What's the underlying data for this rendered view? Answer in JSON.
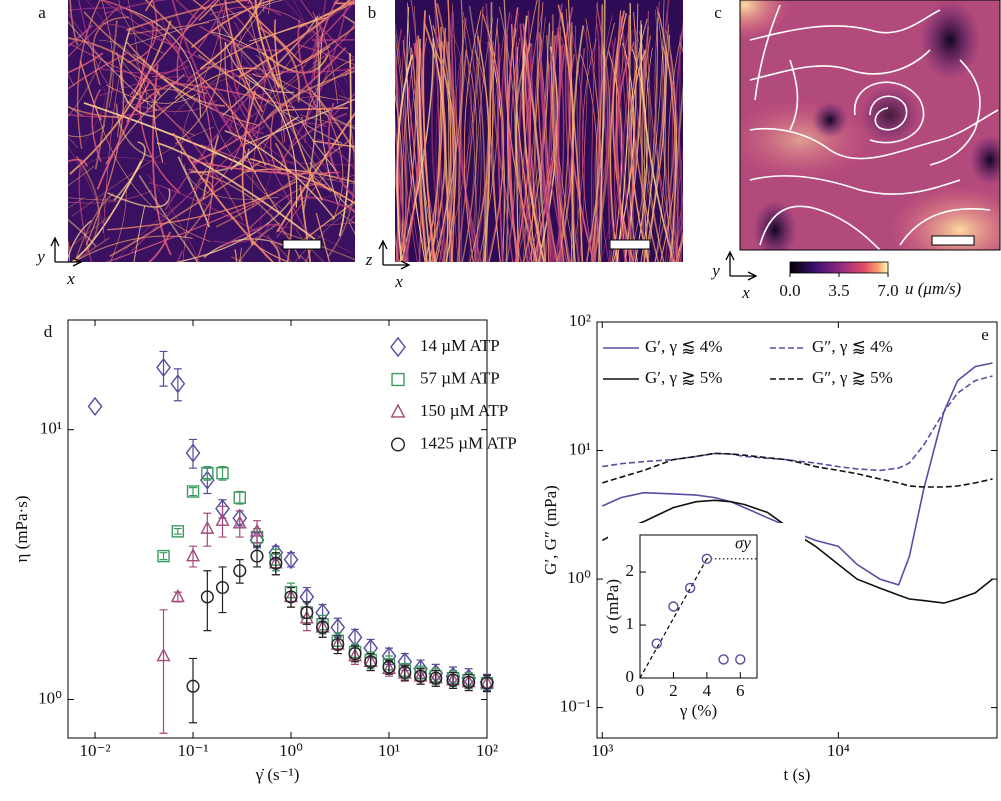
{
  "panels": [
    "a",
    "b",
    "c",
    "d",
    "e"
  ],
  "images": [
    {
      "axes": [
        "y",
        "x"
      ]
    },
    {
      "axes": [
        "z",
        "x"
      ]
    },
    {
      "axes": [
        "y",
        "x"
      ]
    }
  ],
  "colorbar": {
    "range": [
      0,
      7
    ],
    "ticks": [
      {
        "value": 0,
        "label": "0.0"
      },
      3.5,
      {
        "value": 7,
        "label": "7.0"
      }
    ],
    "label": "u (μm/s)"
  },
  "chart_data": [
    {
      "type": "scatter",
      "log_x": true,
      "log_y": true,
      "xlabel": "γ̇ (s⁻¹)",
      "ylabel": "η (mPa·s)",
      "xlim": [
        0.0053,
        100
      ],
      "ylim": [
        0.72,
        25.5
      ],
      "xticks": [
        {
          "value": 0.01,
          "label": "10⁻²"
        },
        {
          "value": 0.1,
          "label": "10⁻¹"
        },
        {
          "value": 1,
          "label": "10⁰"
        },
        {
          "value": 10,
          "label": "10¹"
        },
        {
          "value": 100,
          "label": "10²"
        }
      ],
      "yticks": [
        {
          "value": 1,
          "label": "10⁰"
        },
        {
          "value": 10,
          "label": "10¹"
        }
      ],
      "legend": "upper right",
      "series": [
        {
          "name": "14 µM ATP",
          "color": "#544c9c",
          "marker": "diamond",
          "x": [
            0.01,
            0.05,
            0.07,
            0.1,
            0.14,
            0.2,
            0.3,
            0.45,
            0.7,
            1,
            1.45,
            2.1,
            3,
            4.5,
            6.5,
            10,
            14.5,
            21,
            30,
            45,
            65,
            100
          ],
          "values": [
            12.2,
            17,
            14.8,
            8.2,
            6.5,
            5.1,
            4.7,
            3.9,
            3.5,
            3.3,
            2.4,
            2.1,
            1.85,
            1.7,
            1.55,
            1.45,
            1.38,
            1.3,
            1.25,
            1.22,
            1.2,
            1.16
          ],
          "errors": [
            null,
            2.5,
            2,
            1,
            0.7,
            0.4,
            0.3,
            0.25,
            0.2,
            0.2,
            0.2,
            0.15,
            0.15,
            0.12,
            0.12,
            0.1,
            0.1,
            0.1,
            0.1,
            0.1,
            0.1,
            0.08
          ]
        },
        {
          "name": "57 µM ATP",
          "color": "#3b9a5e",
          "marker": "square",
          "x": [
            0.05,
            0.07,
            0.1,
            0.14,
            0.2,
            0.3,
            0.45,
            0.7,
            1,
            1.45,
            2.1,
            3,
            4.5,
            6.5,
            10,
            14.5,
            21,
            30,
            45,
            65,
            100
          ],
          "values": [
            3.4,
            4.2,
            5.9,
            6.9,
            6.9,
            5.6,
            4.0,
            3.3,
            2.5,
            2.1,
            1.9,
            1.65,
            1.5,
            1.4,
            1.35,
            1.28,
            1.25,
            1.22,
            1.2,
            1.18,
            1.15
          ],
          "errors": [
            0.1,
            0.1,
            0.2,
            0.4,
            0.4,
            0.3,
            0.3,
            0.3,
            0.2,
            0.2,
            0.15,
            0.12,
            0.1,
            0.1,
            0.1,
            0.08,
            0.08,
            0.08,
            0.08,
            0.08,
            0.08
          ]
        },
        {
          "name": "150 µM ATP",
          "color": "#a5497c",
          "marker": "triangle",
          "x": [
            0.05,
            0.07,
            0.1,
            0.14,
            0.2,
            0.3,
            0.45,
            0.7,
            1,
            1.45,
            2.1,
            3,
            4.5,
            6.5,
            10,
            14.5,
            21,
            30,
            45,
            65,
            100
          ],
          "values": [
            1.45,
            2.4,
            3.4,
            4.3,
            4.6,
            4.5,
            4.2,
            3.2,
            2.4,
            2.0,
            1.85,
            1.6,
            1.45,
            1.38,
            1.3,
            1.25,
            1.22,
            1.2,
            1.18,
            1.16,
            1.15
          ],
          "errors": [
            0.7,
            0.1,
            0.3,
            0.6,
            0.6,
            0.5,
            0.4,
            0.3,
            0.2,
            0.2,
            0.15,
            0.12,
            0.1,
            0.1,
            0.08,
            0.08,
            0.08,
            0.08,
            0.08,
            0.08,
            0.08
          ]
        },
        {
          "name": "1425 µM ATP",
          "color": "#222222",
          "marker": "circle",
          "x": [
            0.1,
            0.14,
            0.2,
            0.3,
            0.45,
            0.7,
            1,
            1.45,
            2.1,
            3,
            4.5,
            6.5,
            10,
            14.5,
            21,
            30,
            45,
            65,
            100
          ],
          "values": [
            1.12,
            2.4,
            2.6,
            3.0,
            3.4,
            3.2,
            2.4,
            2.1,
            1.85,
            1.6,
            1.48,
            1.38,
            1.32,
            1.26,
            1.22,
            1.2,
            1.18,
            1.16,
            1.15
          ],
          "errors": [
            0.3,
            0.6,
            0.5,
            0.3,
            0.3,
            0.3,
            0.2,
            0.2,
            0.15,
            0.12,
            0.1,
            0.1,
            0.08,
            0.08,
            0.08,
            0.08,
            0.08,
            0.08,
            0.08
          ]
        }
      ]
    },
    {
      "type": "line",
      "log_x": true,
      "log_y": true,
      "xlabel": "t (s)",
      "ylabel": "G′,  G″ (mPa)",
      "xlim": [
        950,
        47000
      ],
      "ylim": [
        0.058,
        100
      ],
      "xticks": [
        {
          "value": 1000,
          "label": "10³"
        },
        {
          "value": 10000,
          "label": "10⁴"
        }
      ],
      "yticks": [
        {
          "value": 0.1,
          "label": "10⁻¹"
        },
        {
          "value": 1,
          "label": "10⁰"
        },
        {
          "value": 10,
          "label": "10¹"
        },
        {
          "value": 100,
          "label": "10²"
        }
      ],
      "legend": "upper",
      "x": [
        1000,
        1200,
        1500,
        2000,
        2500,
        3000,
        3500,
        4000,
        5000,
        6000,
        7000,
        8000,
        10000,
        12000,
        15000,
        18000,
        20000,
        23000,
        28000,
        32000,
        38000,
        45000
      ],
      "series": [
        {
          "name": "G′, γ ⪅ 4%",
          "color": "#5550a0",
          "dash": false,
          "values": [
            3.7,
            4.3,
            4.7,
            4.6,
            4.5,
            4.3,
            4.0,
            3.6,
            3.0,
            2.6,
            2.2,
            2.0,
            1.8,
            1.3,
            1.0,
            0.9,
            1.5,
            5,
            20,
            35,
            45,
            48
          ]
        },
        {
          "name": "G″, γ ⪅ 4%",
          "color": "#5550a0",
          "dash": true,
          "values": [
            7.5,
            7.9,
            8.2,
            8.5,
            9.0,
            9.5,
            9.4,
            9.0,
            8.7,
            8.5,
            8.2,
            8.0,
            7.5,
            7.2,
            7.0,
            7.3,
            8.0,
            11,
            20,
            28,
            35,
            38
          ]
        },
        {
          "name": "G′, γ ⪆ 5%",
          "color": "#111111",
          "dash": false,
          "values": [
            2.0,
            2.4,
            2.8,
            3.6,
            4.0,
            4.1,
            4.0,
            3.8,
            3.3,
            2.6,
            2.1,
            1.8,
            1.3,
            1.0,
            0.85,
            0.75,
            0.7,
            0.68,
            0.65,
            0.7,
            0.78,
            1.0
          ]
        },
        {
          "name": "G″, γ ⪆ 5%",
          "color": "#111111",
          "dash": true,
          "values": [
            5.6,
            6.2,
            7.0,
            8.5,
            9.0,
            9.5,
            9.4,
            9.2,
            8.8,
            8.5,
            8.0,
            7.5,
            7.0,
            6.6,
            6.0,
            5.6,
            5.3,
            5.2,
            5.2,
            5.3,
            5.6,
            6.0
          ]
        }
      ]
    },
    {
      "type": "scatter",
      "inset": true,
      "xlabel": "γ (%)",
      "ylabel": "σ (mPa)",
      "annotation": "σy",
      "xlim": [
        0,
        7
      ],
      "ylim": [
        0,
        2.7
      ],
      "xticks": [
        0,
        2,
        4,
        6
      ],
      "yticks": [
        0,
        1,
        2
      ],
      "series": [
        {
          "color": "#544c9c",
          "marker": "circle",
          "x": [
            1,
            2,
            3,
            4,
            5,
            6
          ],
          "values": [
            0.65,
            1.35,
            1.7,
            2.25,
            0.35,
            0.35
          ]
        }
      ]
    }
  ]
}
